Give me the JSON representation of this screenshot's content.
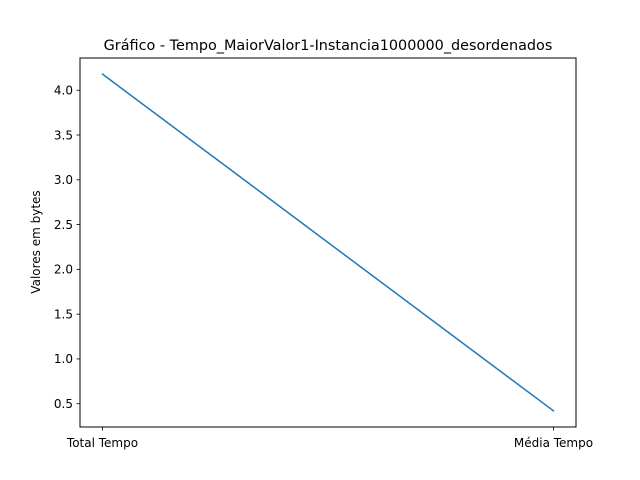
{
  "chart_data": {
    "type": "line",
    "title": "Gráfico - Tempo_MaiorValor1-Instancia1000000_desordenados",
    "xlabel": "",
    "ylabel": "Valores em bytes",
    "categories": [
      "Total Tempo",
      "Média Tempo"
    ],
    "series": [
      {
        "values": [
          4.18,
          0.42
        ],
        "color": "#1f77b4"
      }
    ],
    "ylim": [
      0.24,
      4.36
    ],
    "yticks": [
      0.5,
      1.0,
      1.5,
      2.0,
      2.5,
      3.0,
      3.5,
      4.0
    ],
    "ytick_labels": [
      "0.5",
      "1.0",
      "1.5",
      "2.0",
      "2.5",
      "3.0",
      "3.5",
      "4.0"
    ],
    "grid": false,
    "legend": "none"
  }
}
